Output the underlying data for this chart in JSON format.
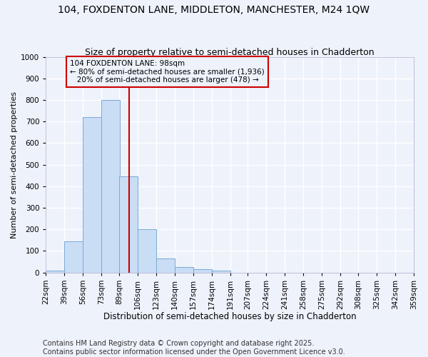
{
  "title1": "104, FOXDENTON LANE, MIDDLETON, MANCHESTER, M24 1QW",
  "title2": "Size of property relative to semi-detached houses in Chadderton",
  "xlabel": "Distribution of semi-detached houses by size in Chadderton",
  "ylabel": "Number of semi-detached properties",
  "footnote1": "Contains HM Land Registry data © Crown copyright and database right 2025.",
  "footnote2": "Contains public sector information licensed under the Open Government Licence v3.0.",
  "bin_labels": [
    "22sqm",
    "39sqm",
    "56sqm",
    "73sqm",
    "89sqm",
    "106sqm",
    "123sqm",
    "140sqm",
    "157sqm",
    "174sqm",
    "191sqm",
    "207sqm",
    "224sqm",
    "241sqm",
    "258sqm",
    "275sqm",
    "292sqm",
    "308sqm",
    "325sqm",
    "342sqm",
    "359sqm"
  ],
  "bar_values": [
    10,
    145,
    720,
    800,
    445,
    200,
    65,
    25,
    15,
    10,
    0,
    0,
    0,
    0,
    0,
    0,
    0,
    0,
    0,
    0
  ],
  "bar_color": "#c9ddf5",
  "bar_edge_color": "#7aaad4",
  "vline_x": 98,
  "vline_color": "#cc0000",
  "bin_edges": [
    22,
    39,
    56,
    73,
    89,
    106,
    123,
    140,
    157,
    174,
    191,
    207,
    224,
    241,
    258,
    275,
    292,
    308,
    325,
    342,
    359
  ],
  "annotation_text": "104 FOXDENTON LANE: 98sqm\n← 80% of semi-detached houses are smaller (1,936)\n   20% of semi-detached houses are larger (478) →",
  "annotation_box_color": "#cc0000",
  "ylim": [
    0,
    1000
  ],
  "xlim_min": 22,
  "xlim_max": 359,
  "background_color": "#eef2fb",
  "grid_color": "#ffffff",
  "title1_fontsize": 10,
  "title2_fontsize": 9,
  "xlabel_fontsize": 8.5,
  "ylabel_fontsize": 8,
  "tick_fontsize": 7.5,
  "footnote_fontsize": 7,
  "annot_fontsize": 7.5
}
